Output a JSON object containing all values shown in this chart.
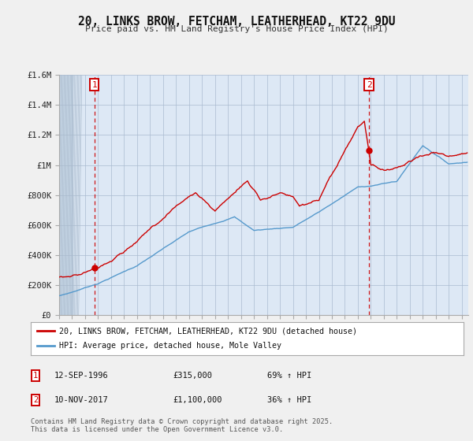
{
  "title": "20, LINKS BROW, FETCHAM, LEATHERHEAD, KT22 9DU",
  "subtitle": "Price paid vs. HM Land Registry's House Price Index (HPI)",
  "legend_house": "20, LINKS BROW, FETCHAM, LEATHERHEAD, KT22 9DU (detached house)",
  "legend_hpi": "HPI: Average price, detached house, Mole Valley",
  "annotation1_label": "1",
  "annotation1_date": "12-SEP-1996",
  "annotation1_price": "£315,000",
  "annotation1_hpi": "69% ↑ HPI",
  "annotation2_label": "2",
  "annotation2_date": "10-NOV-2017",
  "annotation2_price": "£1,100,000",
  "annotation2_hpi": "36% ↑ HPI",
  "footer": "Contains HM Land Registry data © Crown copyright and database right 2025.\nThis data is licensed under the Open Government Licence v3.0.",
  "house_color": "#cc0000",
  "hpi_color": "#5599cc",
  "background_color": "#f0f0f0",
  "plot_bg_color": "#dde8f5",
  "grid_color": "#aabbd0",
  "hatch_bg": "#c8d8e8",
  "xmin": 1994.0,
  "xmax": 2025.5,
  "ymin": 0,
  "ymax": 1600000,
  "yticks": [
    0,
    200000,
    400000,
    600000,
    800000,
    1000000,
    1200000,
    1400000,
    1600000
  ],
  "ytick_labels": [
    "£0",
    "£200K",
    "£400K",
    "£600K",
    "£800K",
    "£1M",
    "£1.2M",
    "£1.4M",
    "£1.6M"
  ],
  "marker1_x": 1996.71,
  "marker1_y": 315000,
  "marker2_x": 2017.86,
  "marker2_y": 1100000,
  "vline1_x": 1996.71,
  "vline2_x": 2017.86
}
